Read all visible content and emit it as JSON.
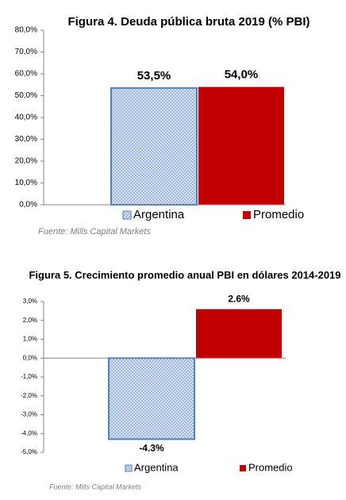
{
  "chart_data": [
    {
      "type": "bar",
      "title": "Figura 4. Deuda pública bruta 2019 (% PBI)",
      "categories": [
        null
      ],
      "series": [
        {
          "name": "Argentina",
          "color": "#9fb8dc",
          "values": [
            53.5
          ],
          "value_labels": [
            "53,5%"
          ]
        },
        {
          "name": "Promedio",
          "color": "#c00000",
          "values": [
            54.0
          ],
          "value_labels": [
            "54,0%"
          ]
        }
      ],
      "ylim": [
        0,
        80
      ],
      "yticks": [
        {
          "value": 0,
          "label": "0,0%"
        },
        {
          "value": 10,
          "label": "10,0%"
        },
        {
          "value": 20,
          "label": "20,0%"
        },
        {
          "value": 30,
          "label": "30,0%"
        },
        {
          "value": 40,
          "label": "40,0%"
        },
        {
          "value": 50,
          "label": "50,0%"
        },
        {
          "value": 60,
          "label": "60,0%"
        },
        {
          "value": 70,
          "label": "70,0%"
        },
        {
          "value": 80,
          "label": "80,0%"
        }
      ],
      "legend": "bottom",
      "source": "Fuente: Mills Capital Markets"
    },
    {
      "type": "bar",
      "title": "Figura 5. Crecimiento promedio anual PBI en dólares 2014-2019",
      "categories": [
        null
      ],
      "series": [
        {
          "name": "Argentina",
          "color": "#9fb8dc",
          "values": [
            -4.3
          ],
          "value_labels": [
            "-4.3%"
          ]
        },
        {
          "name": "Promedio",
          "color": "#c00000",
          "values": [
            2.6
          ],
          "value_labels": [
            "2.6%"
          ]
        }
      ],
      "ylim": [
        -5,
        3
      ],
      "yticks": [
        {
          "value": -5,
          "label": "-5,0%"
        },
        {
          "value": -4,
          "label": "-4,0%"
        },
        {
          "value": -3,
          "label": "-3,0%"
        },
        {
          "value": -2,
          "label": "-2,0%"
        },
        {
          "value": -1,
          "label": "-1,0%"
        },
        {
          "value": 0,
          "label": "0,0%"
        },
        {
          "value": 1,
          "label": "1,0%"
        },
        {
          "value": 2,
          "label": "2,0%"
        },
        {
          "value": 3,
          "label": "3,0%"
        }
      ],
      "legend": "bottom",
      "source": "Fuente: Mills Capital Markets"
    }
  ]
}
